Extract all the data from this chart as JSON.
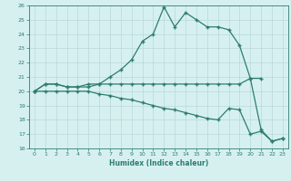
{
  "line1_x": [
    0,
    1,
    2,
    3,
    4,
    5,
    6,
    7,
    8,
    9,
    10,
    11,
    12,
    13,
    14,
    15,
    16,
    17,
    18,
    19,
    20,
    21,
    22,
    23
  ],
  "line1_y": [
    20,
    20.5,
    20.5,
    20.3,
    20.3,
    20.5,
    20.5,
    21.0,
    21.5,
    22.2,
    23.5,
    24.0,
    25.9,
    24.5,
    25.5,
    25.0,
    24.5,
    24.5,
    24.3,
    23.2,
    20.9,
    17.3,
    16.5,
    16.7
  ],
  "line2_x": [
    0,
    1,
    2,
    3,
    4,
    5,
    6,
    7,
    8,
    9,
    10,
    11,
    12,
    13,
    14,
    15,
    16,
    17,
    18,
    19,
    20,
    21
  ],
  "line2_y": [
    20,
    20.5,
    20.5,
    20.3,
    20.3,
    20.3,
    20.5,
    20.5,
    20.5,
    20.5,
    20.5,
    20.5,
    20.5,
    20.5,
    20.5,
    20.5,
    20.5,
    20.5,
    20.5,
    20.5,
    20.9,
    20.9
  ],
  "line3_x": [
    0,
    1,
    2,
    3,
    4,
    5,
    6,
    7,
    8,
    9,
    10,
    11,
    12,
    13,
    14,
    15,
    16,
    17,
    18,
    19,
    20,
    21,
    22,
    23
  ],
  "line3_y": [
    20,
    20.0,
    20.0,
    20.0,
    20.0,
    20.0,
    19.8,
    19.7,
    19.5,
    19.4,
    19.2,
    19.0,
    18.8,
    18.7,
    18.5,
    18.3,
    18.1,
    18.0,
    18.8,
    18.7,
    17.0,
    17.2,
    16.5,
    16.7
  ],
  "line_color": "#2e7d6e",
  "bg_color": "#d6f0f0",
  "grid_color": "#b8d8d8",
  "xlabel": "Humidex (Indice chaleur)",
  "xlim": [
    -0.5,
    23.5
  ],
  "ylim": [
    16,
    26
  ],
  "xticks": [
    0,
    1,
    2,
    3,
    4,
    5,
    6,
    7,
    8,
    9,
    10,
    11,
    12,
    13,
    14,
    15,
    16,
    17,
    18,
    19,
    20,
    21,
    22,
    23
  ],
  "yticks": [
    16,
    17,
    18,
    19,
    20,
    21,
    22,
    23,
    24,
    25,
    26
  ],
  "marker": "+"
}
